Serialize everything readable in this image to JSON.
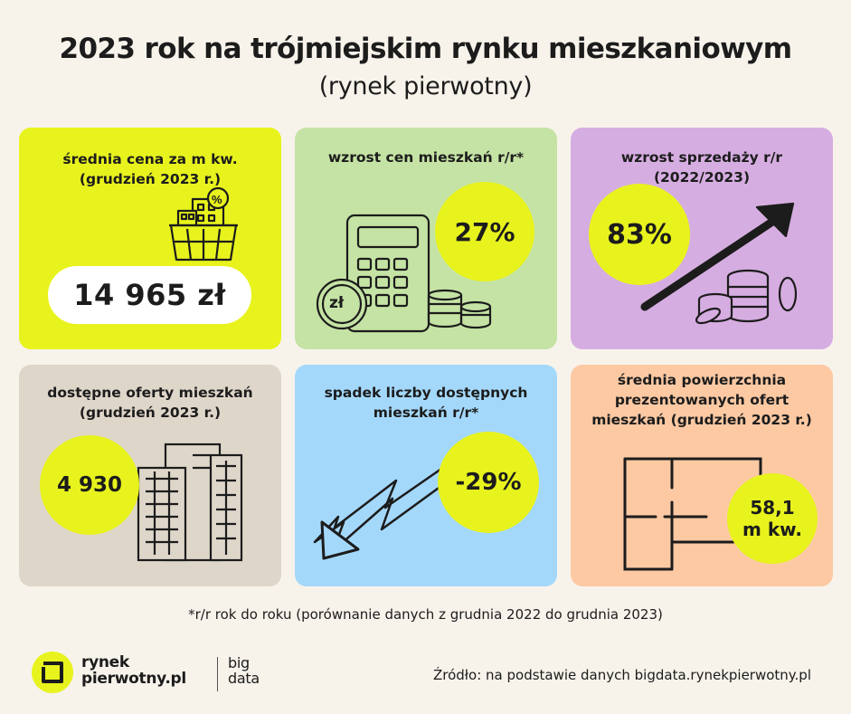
{
  "header": {
    "title": "2023 rok na trójmiejskim rynku mieszkaniowym",
    "subtitle": "(rynek pierwotny)"
  },
  "cards": [
    {
      "label": "średnia cena za m kw.\n(grudzień 2023 r.)",
      "value": "14 965 zł",
      "bg": "#e8f31d",
      "icon": "shopping-basket-buildings-icon"
    },
    {
      "label": "wzrost cen mieszkań r/r*",
      "value": "27%",
      "bg": "#c5e3a4",
      "icon": "calculator-coins-icon",
      "coin_text": "zł"
    },
    {
      "label": "wzrost sprzedaży r/r\n(2022/2023)",
      "value": "83%",
      "bg": "#d6ade1",
      "icon": "rising-arrow-coins-icon"
    },
    {
      "label": "dostępne oferty mieszkań\n(grudzień 2023 r.)",
      "value": "4 930",
      "bg": "#dfd6ca",
      "icon": "buildings-icon"
    },
    {
      "label": "spadek liczby dostępnych\nmieszkań r/r*",
      "value": "-29%",
      "bg": "#a4d8fb",
      "icon": "falling-arrow-icon"
    },
    {
      "label": "średnia powierzchnia\nprezentowanych ofert\nmieszkań (grudzień 2023 r.)",
      "value": "58,1\nm kw.",
      "bg": "#fcc9a3",
      "icon": "floor-plan-icon"
    }
  ],
  "footnote": "*r/r rok do roku (porównanie danych z grudnia 2022 do grudnia 2023)",
  "logo": {
    "name": "rynek\npierwotny.pl",
    "partner": "big\ndata"
  },
  "source": "Źródło: na podstawie danych bigdata.rynekpierwotny.pl",
  "colors": {
    "accent": "#e8f31d",
    "background": "#f7f3eb",
    "ink": "#1c1c1c"
  }
}
